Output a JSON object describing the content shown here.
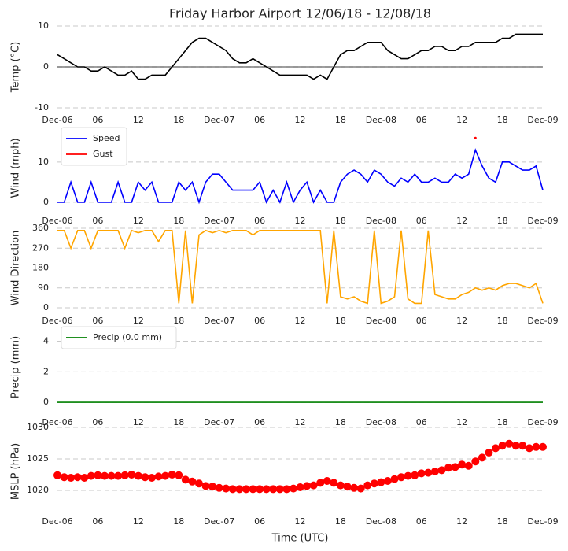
{
  "chart_data": [
    {
      "type": "line",
      "title": "Friday Harbor Airport 12/06/18 - 12/08/18",
      "ylabel": "Temp (°C)",
      "x": [
        0,
        1,
        2,
        3,
        4,
        5,
        6,
        7,
        8,
        9,
        10,
        11,
        12,
        13,
        14,
        15,
        16,
        17,
        18,
        19,
        20,
        21,
        22,
        23,
        24,
        25,
        26,
        27,
        28,
        29,
        30,
        31,
        32,
        33,
        34,
        35,
        36,
        37,
        38,
        39,
        40,
        41,
        42,
        43,
        44,
        45,
        46,
        47,
        48,
        49,
        50,
        51,
        52,
        53,
        54,
        55,
        56,
        57,
        58,
        59,
        60,
        61,
        62,
        63,
        64,
        65,
        66,
        67,
        68,
        69,
        70,
        71,
        72
      ],
      "series": [
        {
          "color": "#000000",
          "values": [
            3,
            2,
            1,
            0,
            0,
            -1,
            -1,
            0,
            -1,
            -2,
            -2,
            -1,
            -3,
            -3,
            -2,
            -2,
            -2,
            0,
            2,
            4,
            6,
            7,
            7,
            6,
            5,
            4,
            2,
            1,
            1,
            2,
            1,
            0,
            -1,
            -2,
            -2,
            -2,
            -2,
            -2,
            -3,
            -2,
            -3,
            0,
            3,
            4,
            4,
            5,
            6,
            6,
            6,
            4,
            3,
            2,
            2,
            3,
            4,
            4,
            5,
            5,
            4,
            4,
            5,
            5,
            6,
            6,
            6,
            6,
            7,
            7,
            8,
            8,
            8,
            8,
            8
          ]
        }
      ],
      "xlim": [
        0,
        72
      ],
      "xticks": [
        {
          "value": 0,
          "label": "Dec-06"
        },
        {
          "value": 6,
          "label": "06"
        },
        12,
        18,
        {
          "value": 24,
          "label": "Dec-07"
        },
        {
          "value": 30,
          "label": "06"
        },
        {
          "value": 36,
          "label": "12"
        },
        {
          "value": 42,
          "label": "18"
        },
        {
          "value": 48,
          "label": "Dec-08"
        },
        {
          "value": 54,
          "label": "06"
        },
        {
          "value": 60,
          "label": "12"
        },
        {
          "value": 66,
          "label": "18"
        },
        {
          "value": 72,
          "label": "Dec-09"
        }
      ],
      "ylim": [
        -10,
        10
      ],
      "yticks": [
        -10,
        0,
        10
      ],
      "grid": true,
      "hline": 0
    },
    {
      "type": "line",
      "ylabel": "Wind (mph)",
      "x": [
        0,
        1,
        2,
        3,
        4,
        5,
        6,
        7,
        8,
        9,
        10,
        11,
        12,
        13,
        14,
        15,
        16,
        17,
        18,
        19,
        20,
        21,
        22,
        23,
        24,
        25,
        26,
        27,
        28,
        29,
        30,
        31,
        32,
        33,
        34,
        35,
        36,
        37,
        38,
        39,
        40,
        41,
        42,
        43,
        44,
        45,
        46,
        47,
        48,
        49,
        50,
        51,
        52,
        53,
        54,
        55,
        56,
        57,
        58,
        59,
        60,
        61,
        62,
        63,
        64,
        65,
        66,
        67,
        68,
        69,
        70,
        71,
        72
      ],
      "series": [
        {
          "name": "Speed",
          "color": "#0000ff",
          "values": [
            0,
            0,
            5,
            0,
            0,
            5,
            0,
            0,
            0,
            5,
            0,
            0,
            5,
            3,
            5,
            0,
            0,
            0,
            5,
            3,
            5,
            0,
            5,
            7,
            7,
            5,
            3,
            3,
            3,
            3,
            5,
            0,
            3,
            0,
            5,
            0,
            3,
            5,
            0,
            3,
            0,
            0,
            5,
            7,
            8,
            7,
            5,
            8,
            7,
            5,
            4,
            6,
            5,
            7,
            5,
            5,
            6,
            5,
            5,
            7,
            6,
            7,
            13,
            9,
            6,
            5,
            10,
            10,
            9,
            8,
            8,
            9,
            3
          ]
        },
        {
          "name": "Gust",
          "color": "#ff0000",
          "values": [
            null,
            null,
            null,
            null,
            null,
            null,
            null,
            null,
            null,
            null,
            null,
            null,
            null,
            null,
            null,
            null,
            null,
            null,
            null,
            null,
            null,
            null,
            null,
            null,
            null,
            null,
            null,
            null,
            null,
            null,
            null,
            null,
            null,
            null,
            null,
            null,
            null,
            null,
            null,
            null,
            null,
            null,
            null,
            null,
            null,
            null,
            null,
            null,
            null,
            null,
            null,
            null,
            null,
            null,
            null,
            null,
            null,
            null,
            null,
            null,
            null,
            null,
            16,
            null,
            null,
            null,
            null,
            null,
            null,
            null,
            null,
            null,
            null
          ]
        }
      ],
      "xlim": [
        0,
        72
      ],
      "xticks": [
        {
          "value": 0,
          "label": "Dec-06"
        },
        {
          "value": 6,
          "label": "06"
        },
        12,
        18,
        {
          "value": 24,
          "label": "Dec-07"
        },
        {
          "value": 30,
          "label": "06"
        },
        {
          "value": 36,
          "label": "12"
        },
        {
          "value": 42,
          "label": "18"
        },
        {
          "value": 48,
          "label": "Dec-08"
        },
        {
          "value": 54,
          "label": "06"
        },
        {
          "value": 60,
          "label": "12"
        },
        {
          "value": 66,
          "label": "18"
        },
        {
          "value": 72,
          "label": "Dec-09"
        }
      ],
      "ylim": [
        -1,
        18
      ],
      "yticks": [
        0,
        10
      ],
      "grid": true,
      "legend": "upper left"
    },
    {
      "type": "line",
      "ylabel": "Wind Direction",
      "x": [
        0,
        1,
        2,
        3,
        4,
        5,
        6,
        7,
        8,
        9,
        10,
        11,
        12,
        13,
        14,
        15,
        16,
        17,
        18,
        19,
        20,
        21,
        22,
        23,
        24,
        25,
        26,
        27,
        28,
        29,
        30,
        31,
        32,
        33,
        34,
        35,
        36,
        37,
        38,
        39,
        40,
        41,
        42,
        43,
        44,
        45,
        46,
        47,
        48,
        49,
        50,
        51,
        52,
        53,
        54,
        55,
        56,
        57,
        58,
        59,
        60,
        61,
        62,
        63,
        64,
        65,
        66,
        67,
        68,
        69,
        70,
        71,
        72
      ],
      "series": [
        {
          "color": "#ffa500",
          "values": [
            350,
            350,
            270,
            350,
            350,
            270,
            350,
            350,
            350,
            350,
            270,
            350,
            340,
            350,
            350,
            300,
            350,
            350,
            20,
            350,
            20,
            330,
            350,
            340,
            350,
            340,
            350,
            350,
            350,
            330,
            350,
            350,
            350,
            350,
            350,
            350,
            350,
            350,
            350,
            350,
            20,
            350,
            50,
            40,
            50,
            30,
            20,
            350,
            20,
            30,
            50,
            350,
            40,
            20,
            20,
            350,
            60,
            50,
            40,
            40,
            60,
            70,
            90,
            80,
            90,
            80,
            100,
            110,
            110,
            100,
            90,
            110,
            20
          ]
        }
      ],
      "xlim": [
        0,
        72
      ],
      "xticks": [
        {
          "value": 0,
          "label": "Dec-06"
        },
        {
          "value": 6,
          "label": "06"
        },
        12,
        18,
        {
          "value": 24,
          "label": "Dec-07"
        },
        {
          "value": 30,
          "label": "06"
        },
        {
          "value": 36,
          "label": "12"
        },
        {
          "value": 42,
          "label": "18"
        },
        {
          "value": 48,
          "label": "Dec-08"
        },
        {
          "value": 54,
          "label": "06"
        },
        {
          "value": 60,
          "label": "12"
        },
        {
          "value": 66,
          "label": "18"
        },
        {
          "value": 72,
          "label": "Dec-09"
        }
      ],
      "ylim": [
        0,
        360
      ],
      "yticks": [
        0,
        90,
        180,
        270,
        360
      ],
      "grid": true
    },
    {
      "type": "line",
      "ylabel": "Precip (mm)",
      "x": [
        0,
        1,
        2,
        3,
        4,
        5,
        6,
        7,
        8,
        9,
        10,
        11,
        12,
        13,
        14,
        15,
        16,
        17,
        18,
        19,
        20,
        21,
        22,
        23,
        24,
        25,
        26,
        27,
        28,
        29,
        30,
        31,
        32,
        33,
        34,
        35,
        36,
        37,
        38,
        39,
        40,
        41,
        42,
        43,
        44,
        45,
        46,
        47,
        48,
        49,
        50,
        51,
        52,
        53,
        54,
        55,
        56,
        57,
        58,
        59,
        60,
        61,
        62,
        63,
        64,
        65,
        66,
        67,
        68,
        69,
        70,
        71,
        72
      ],
      "series": [
        {
          "name": "Precip (0.0 mm)",
          "color": "#008000",
          "values": [
            0,
            0,
            0,
            0,
            0,
            0,
            0,
            0,
            0,
            0,
            0,
            0,
            0,
            0,
            0,
            0,
            0,
            0,
            0,
            0,
            0,
            0,
            0,
            0,
            0,
            0,
            0,
            0,
            0,
            0,
            0,
            0,
            0,
            0,
            0,
            0,
            0,
            0,
            0,
            0,
            0,
            0,
            0,
            0,
            0,
            0,
            0,
            0,
            0,
            0,
            0,
            0,
            0,
            0,
            0,
            0,
            0,
            0,
            0,
            0,
            0,
            0,
            0,
            0,
            0,
            0,
            0,
            0,
            0,
            0,
            0,
            0,
            0
          ]
        }
      ],
      "xlim": [
        0,
        72
      ],
      "xticks": [
        {
          "value": 0,
          "label": "Dec-06"
        },
        {
          "value": 6,
          "label": "06"
        },
        12,
        18,
        {
          "value": 24,
          "label": "Dec-07"
        },
        {
          "value": 30,
          "label": "06"
        },
        {
          "value": 36,
          "label": "12"
        },
        {
          "value": 42,
          "label": "18"
        },
        {
          "value": 48,
          "label": "Dec-08"
        },
        {
          "value": 54,
          "label": "06"
        },
        {
          "value": 60,
          "label": "12"
        },
        {
          "value": 66,
          "label": "18"
        },
        {
          "value": 72,
          "label": "Dec-09"
        }
      ],
      "ylim": [
        -0.2,
        4.8
      ],
      "yticks": [
        0,
        2,
        4
      ],
      "grid": true,
      "legend": "upper left"
    },
    {
      "type": "scatter",
      "ylabel": "MSLP (hPa)",
      "xlabel": "Time (UTC)",
      "x": [
        0,
        1,
        2,
        3,
        4,
        5,
        6,
        7,
        8,
        9,
        10,
        11,
        12,
        13,
        14,
        15,
        16,
        17,
        18,
        19,
        20,
        21,
        22,
        23,
        24,
        25,
        26,
        27,
        28,
        29,
        30,
        31,
        32,
        33,
        34,
        35,
        36,
        37,
        38,
        39,
        40,
        41,
        42,
        43,
        44,
        45,
        46,
        47,
        48,
        49,
        50,
        51,
        52,
        53,
        54,
        55,
        56,
        57,
        58,
        59,
        60,
        61,
        62,
        63,
        64,
        65,
        66,
        67,
        68,
        69,
        70,
        71,
        72
      ],
      "series": [
        {
          "color": "#ff0000",
          "values": [
            1022.4,
            1022.1,
            1022.0,
            1022.1,
            1022.0,
            1022.3,
            1022.4,
            1022.3,
            1022.3,
            1022.3,
            1022.4,
            1022.5,
            1022.3,
            1022.1,
            1022.0,
            1022.2,
            1022.3,
            1022.5,
            1022.4,
            1021.7,
            1021.4,
            1021.1,
            1020.7,
            1020.6,
            1020.4,
            1020.3,
            1020.2,
            1020.2,
            1020.2,
            1020.2,
            1020.2,
            1020.2,
            1020.2,
            1020.2,
            1020.2,
            1020.3,
            1020.5,
            1020.7,
            1020.8,
            1021.2,
            1021.5,
            1021.2,
            1020.8,
            1020.6,
            1020.4,
            1020.3,
            1020.8,
            1021.1,
            1021.3,
            1021.5,
            1021.8,
            1022.1,
            1022.3,
            1022.4,
            1022.7,
            1022.8,
            1023.0,
            1023.2,
            1023.6,
            1023.7,
            1024.1,
            1023.9,
            1024.6,
            1025.2,
            1026.0,
            1026.7,
            1027.1,
            1027.4,
            1027.1,
            1027.1,
            1026.7,
            1026.9,
            1026.9
          ]
        }
      ],
      "xlim": [
        0,
        72
      ],
      "xticks": [
        {
          "value": 0,
          "label": "Dec-06"
        },
        {
          "value": 6,
          "label": "06"
        },
        12,
        18,
        {
          "value": 24,
          "label": "Dec-07"
        },
        {
          "value": 30,
          "label": "06"
        },
        {
          "value": 36,
          "label": "12"
        },
        {
          "value": 42,
          "label": "18"
        },
        {
          "value": 48,
          "label": "Dec-08"
        },
        {
          "value": 54,
          "label": "06"
        },
        {
          "value": 60,
          "label": "12"
        },
        {
          "value": 66,
          "label": "18"
        },
        {
          "value": 72,
          "label": "Dec-09"
        }
      ],
      "ylim": [
        1016,
        1030
      ],
      "yticks": [
        1020,
        1025,
        1030
      ],
      "grid": true
    }
  ]
}
